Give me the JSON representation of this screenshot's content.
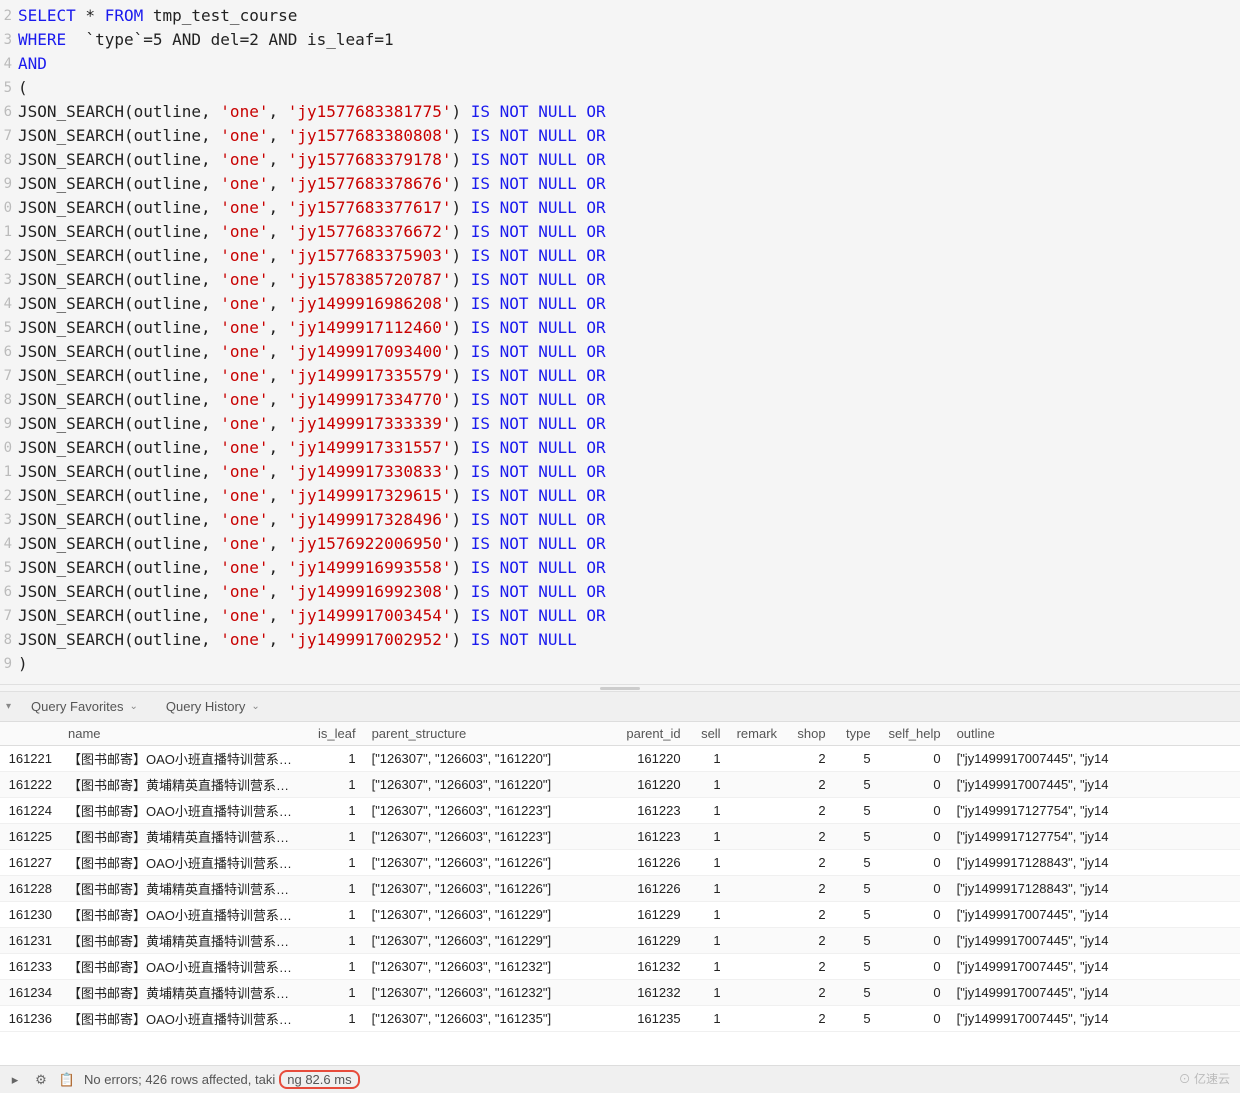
{
  "editor": {
    "line_numbers": [
      "2",
      "3",
      "4",
      "5",
      "6",
      "7",
      "8",
      "9",
      "0",
      "1",
      "2",
      "3",
      "4",
      "5",
      "6",
      "7",
      "8",
      "9",
      "0",
      "1",
      "2",
      "3",
      "4",
      "5",
      "6",
      "7",
      "8",
      "9"
    ],
    "head": {
      "select": "SELECT",
      "star": " * ",
      "from": "FROM",
      "table": " tmp_test_course",
      "where": "WHERE",
      "cond": "  `type`=5 AND del=2 AND is_leaf=1",
      "and": "AND",
      "lparen": "(",
      "rparen": ")"
    },
    "fn_prefix": "JSON_SEARCH(outline, ",
    "fn_arg1": "'one'",
    "fn_sep": ", ",
    "fn_close": ") ",
    "is_not_null": "IS NOT NULL",
    "or": " OR",
    "search_ids": [
      "jy1577683381775",
      "jy1577683380808",
      "jy1577683379178",
      "jy1577683378676",
      "jy1577683377617",
      "jy1577683376672",
      "jy1577683375903",
      "jy1578385720787",
      "jy1499916986208",
      "jy1499917112460",
      "jy1499917093400",
      "jy1499917335579",
      "jy1499917334770",
      "jy1499917333339",
      "jy1499917331557",
      "jy1499917330833",
      "jy1499917329615",
      "jy1499917328496",
      "jy1576922006950",
      "jy1499916993558",
      "jy1499916992308",
      "jy1499917003454",
      "jy1499917002952"
    ],
    "colors": {
      "keyword": "#1a1aee",
      "string": "#c80000",
      "text": "#222222",
      "bg": "#f5f5f5"
    }
  },
  "toolbar": {
    "dropdown_icon": "▾",
    "favorites_label": "Query Favorites",
    "history_label": "Query History"
  },
  "results": {
    "columns": [
      "",
      "name",
      "is_leaf",
      "parent_structure",
      "parent_id",
      "sell",
      "remark",
      "shop",
      "type",
      "self_help",
      "outline"
    ],
    "col_align": [
      "num",
      "left",
      "num",
      "left",
      "num",
      "num",
      "left",
      "num",
      "num",
      "num",
      "left"
    ],
    "col_widths": [
      "60px",
      "250px",
      "50px",
      "250px",
      "75px",
      "40px",
      "60px",
      "45px",
      "45px",
      "70px",
      "auto"
    ],
    "rows": [
      [
        "161221",
        "【图书邮寄】OAO小班直播特训营系…",
        "1",
        "[\"126307\", \"126603\", \"161220\"]",
        "161220",
        "1",
        "",
        "2",
        "5",
        "0",
        "[\"jy1499917007445\", \"jy14"
      ],
      [
        "161222",
        "【图书邮寄】黄埔精英直播特训营系…",
        "1",
        "[\"126307\", \"126603\", \"161220\"]",
        "161220",
        "1",
        "",
        "2",
        "5",
        "0",
        "[\"jy1499917007445\", \"jy14"
      ],
      [
        "161224",
        "【图书邮寄】OAO小班直播特训营系…",
        "1",
        "[\"126307\", \"126603\", \"161223\"]",
        "161223",
        "1",
        "",
        "2",
        "5",
        "0",
        "[\"jy1499917127754\", \"jy14"
      ],
      [
        "161225",
        "【图书邮寄】黄埔精英直播特训营系…",
        "1",
        "[\"126307\", \"126603\", \"161223\"]",
        "161223",
        "1",
        "",
        "2",
        "5",
        "0",
        "[\"jy1499917127754\", \"jy14"
      ],
      [
        "161227",
        "【图书邮寄】OAO小班直播特训营系…",
        "1",
        "[\"126307\", \"126603\", \"161226\"]",
        "161226",
        "1",
        "",
        "2",
        "5",
        "0",
        "[\"jy1499917128843\", \"jy14"
      ],
      [
        "161228",
        "【图书邮寄】黄埔精英直播特训营系…",
        "1",
        "[\"126307\", \"126603\", \"161226\"]",
        "161226",
        "1",
        "",
        "2",
        "5",
        "0",
        "[\"jy1499917128843\", \"jy14"
      ],
      [
        "161230",
        "【图书邮寄】OAO小班直播特训营系…",
        "1",
        "[\"126307\", \"126603\", \"161229\"]",
        "161229",
        "1",
        "",
        "2",
        "5",
        "0",
        "[\"jy1499917007445\", \"jy14"
      ],
      [
        "161231",
        "【图书邮寄】黄埔精英直播特训营系…",
        "1",
        "[\"126307\", \"126603\", \"161229\"]",
        "161229",
        "1",
        "",
        "2",
        "5",
        "0",
        "[\"jy1499917007445\", \"jy14"
      ],
      [
        "161233",
        "【图书邮寄】OAO小班直播特训营系…",
        "1",
        "[\"126307\", \"126603\", \"161232\"]",
        "161232",
        "1",
        "",
        "2",
        "5",
        "0",
        "[\"jy1499917007445\", \"jy14"
      ],
      [
        "161234",
        "【图书邮寄】黄埔精英直播特训营系…",
        "1",
        "[\"126307\", \"126603\", \"161232\"]",
        "161232",
        "1",
        "",
        "2",
        "5",
        "0",
        "[\"jy1499917007445\", \"jy14"
      ],
      [
        "161236",
        "【图书邮寄】OAO小班直播特训营系…",
        "1",
        "[\"126307\", \"126603\", \"161235\"]",
        "161235",
        "1",
        "",
        "2",
        "5",
        "0",
        "[\"jy1499917007445\", \"jy14"
      ]
    ]
  },
  "statusbar": {
    "text_prefix": "No errors; 426 rows affected, taki",
    "text_highlight": "ng 82.6 ms",
    "gear_icon": "⚙",
    "plan_icon": "📋",
    "collapse_icon": "▸"
  },
  "watermark": "⊙ 亿速云"
}
